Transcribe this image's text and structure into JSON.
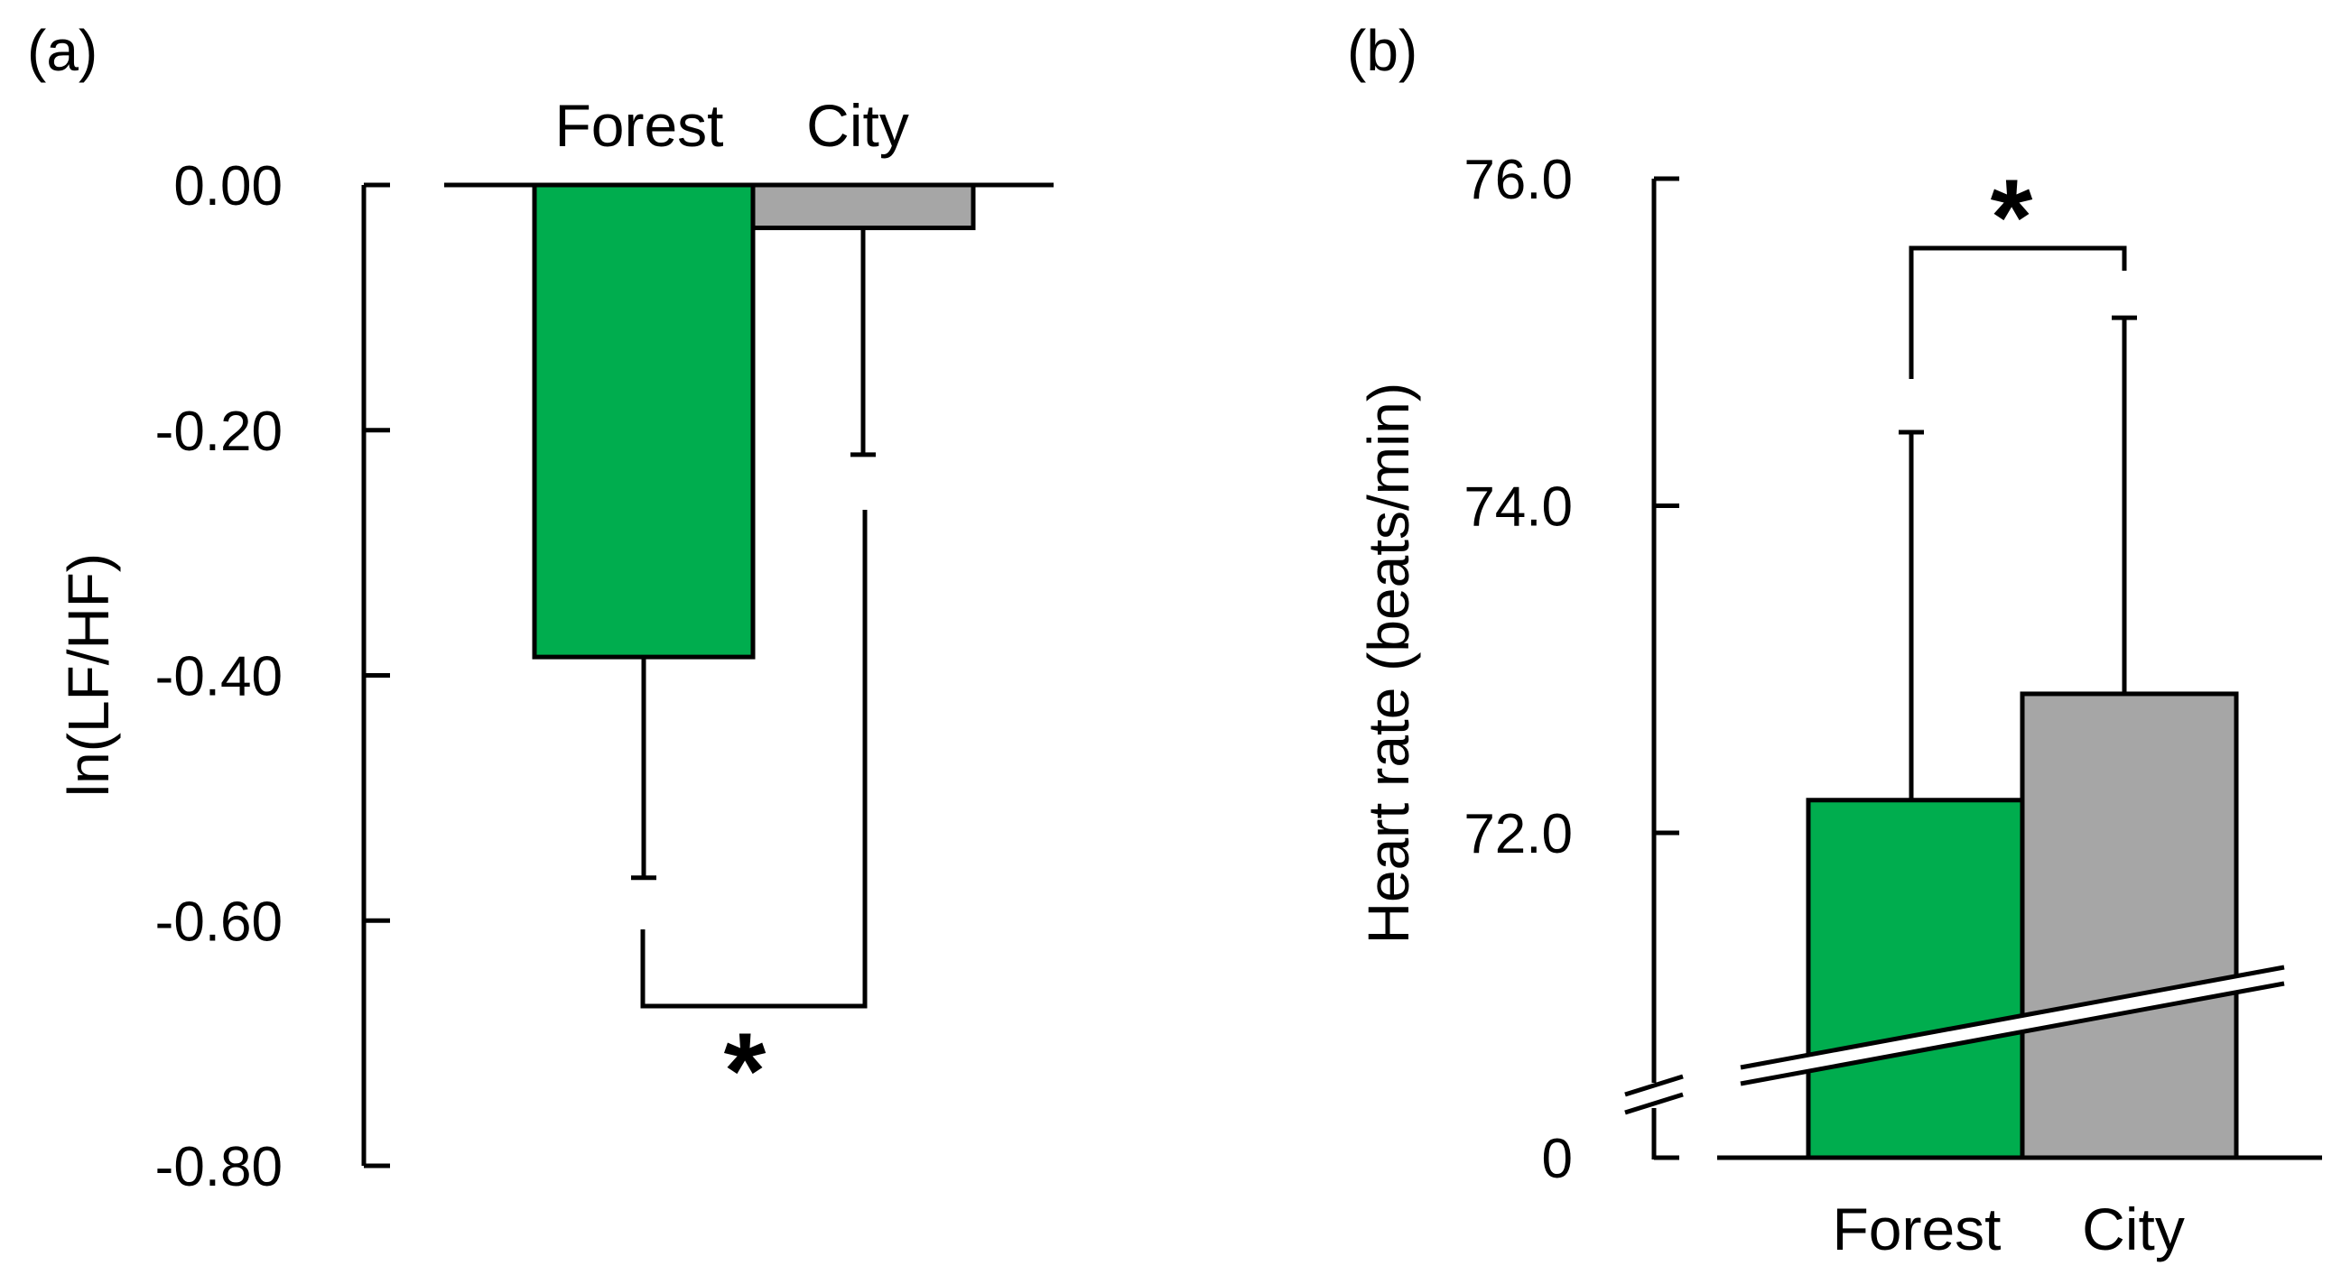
{
  "chart_data": [
    {
      "panel_label": "(a)",
      "type": "bar",
      "categories": [
        "Forest",
        "City"
      ],
      "values": [
        -0.385,
        -0.035
      ],
      "error_extent": [
        -0.565,
        -0.22
      ],
      "ylabel": "ln(LF/HF)",
      "ylim": [
        -0.8,
        0.0
      ],
      "yticks": [
        "0.00",
        "-0.20",
        "-0.40",
        "-0.60",
        "-0.80"
      ],
      "category_label_position": "top",
      "significance": "*",
      "grid": false,
      "colors": [
        "#00ad4e",
        "#a6a6a6"
      ]
    },
    {
      "panel_label": "(b)",
      "type": "bar",
      "categories": [
        "Forest",
        "City"
      ],
      "values": [
        72.2,
        72.85
      ],
      "error_extent": [
        74.45,
        75.15
      ],
      "ylabel": "Heart rate  (beats/min)",
      "ylim": [
        70.4,
        76.0
      ],
      "yticks": [
        "76.0",
        "74.0",
        "72.0",
        "0"
      ],
      "axis_break": true,
      "category_label_position": "bottom",
      "significance": "*",
      "grid": false,
      "colors": [
        "#00ad4e",
        "#a6a6a6"
      ]
    }
  ]
}
